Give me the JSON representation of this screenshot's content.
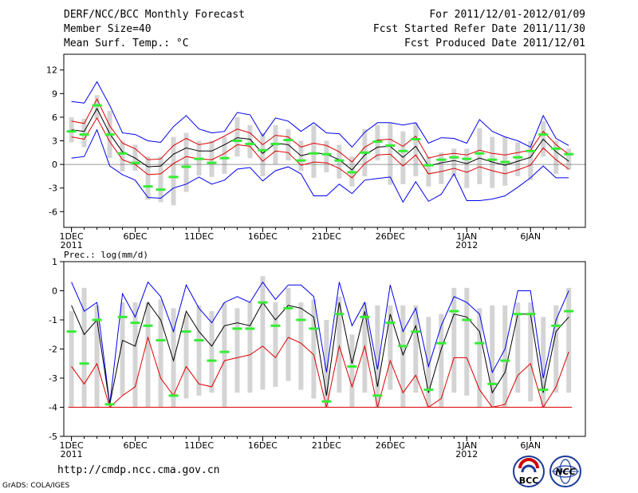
{
  "header": {
    "left": [
      "DERF/NCC/BCC Monthly Forecast",
      "Member Size=40",
      "Mean Surf. Temp.: °C"
    ],
    "right": [
      "For 2011/12/01-2012/01/09",
      "Fcst Started Refer Date 2011/11/30",
      "Fcst Produced Date 2011/12/01"
    ]
  },
  "footer": {
    "url": "http://cmdp.ncc.cma.gov.cn",
    "grads": "GrADS: COLA/IGES"
  },
  "logos": {
    "bcc": "BCC",
    "ncc": "NCC"
  },
  "colors": {
    "bar": "#d4d4d4",
    "green": "#33ee33",
    "red": "#dd0000",
    "blue": "#0000ee",
    "black": "#000000",
    "zero": "#777777"
  },
  "x_ticks": {
    "labels": [
      "1DEC",
      "6DEC",
      "11DEC",
      "16DEC",
      "21DEC",
      "26DEC",
      "1JAN",
      "6JAN"
    ],
    "days": [
      1,
      6,
      11,
      16,
      21,
      26,
      32,
      37
    ],
    "year_labels": [
      {
        "day": 1,
        "text": "2011"
      },
      {
        "day": 32,
        "text": "2012"
      }
    ]
  },
  "chart_data": [
    {
      "type": "line",
      "title": "Mean Surf. Temp.: °C",
      "x": [
        1,
        2,
        3,
        4,
        5,
        6,
        7,
        8,
        9,
        10,
        11,
        12,
        13,
        14,
        15,
        16,
        17,
        18,
        19,
        20,
        21,
        22,
        23,
        24,
        25,
        26,
        27,
        28,
        29,
        30,
        31,
        32,
        33,
        34,
        35,
        36,
        37,
        38,
        39,
        40
      ],
      "ylim": [
        -8,
        14
      ],
      "yticks": [
        -6,
        -3,
        0,
        3,
        6,
        9,
        12
      ],
      "series": [
        {
          "name": "max",
          "color": "blue",
          "values": [
            8,
            7.8,
            10.5,
            7.5,
            4,
            3.8,
            3,
            2.8,
            4.8,
            6.2,
            4.5,
            4,
            4.2,
            6.6,
            6.3,
            3.6,
            5.9,
            5.5,
            4.2,
            5.3,
            4,
            3.9,
            2.2,
            4.1,
            5.3,
            5.3,
            5,
            5.3,
            2.7,
            3.4,
            3.3,
            2.7,
            5.7,
            4.2,
            3.5,
            3,
            2.2,
            6.2,
            3.3,
            2.4
          ]
        },
        {
          "name": "upper",
          "color": "red",
          "values": [
            5.5,
            5.2,
            8.3,
            4.9,
            2.7,
            2,
            0.6,
            0.7,
            2.4,
            3.3,
            2.5,
            2.8,
            3.6,
            4.5,
            4,
            2.5,
            3.7,
            3.5,
            2.2,
            2.7,
            2.4,
            1.6,
            0.3,
            2.2,
            3.1,
            3.2,
            2.3,
            3.6,
            0.8,
            1.2,
            1.4,
            1.2,
            1.8,
            1.4,
            1.2,
            1.5,
            1.8,
            4.2,
            2.5,
            1.3
          ]
        },
        {
          "name": "mean",
          "color": "black",
          "values": [
            4.4,
            4.2,
            7.1,
            3.9,
            1.6,
            0.8,
            -0.3,
            -0.2,
            1.3,
            2.1,
            1.7,
            1.7,
            2.5,
            3.4,
            3.2,
            1.4,
            2.7,
            2.5,
            1.1,
            1.5,
            1.3,
            0.6,
            -0.7,
            1.2,
            2.2,
            2.3,
            0.9,
            2.3,
            -0.2,
            0.2,
            0.5,
            0.1,
            0.8,
            0.3,
            -0.1,
            0.4,
            0.9,
            3.2,
            1.6,
            0.4
          ]
        },
        {
          "name": "lower",
          "color": "red",
          "values": [
            3.5,
            3.2,
            5.9,
            2.9,
            0.6,
            0,
            -1.3,
            -1.2,
            0.1,
            1,
            0.7,
            0.6,
            1.4,
            2.5,
            2.3,
            0.4,
            1.7,
            1.5,
            -0.1,
            0.3,
            0.2,
            -0.5,
            -1.7,
            0.1,
            1.2,
            1.3,
            -0.2,
            1.2,
            -1.2,
            -0.9,
            -0.5,
            -1,
            -0.3,
            -0.8,
            -1.2,
            -0.7,
            -0.1,
            2.1,
            0.6,
            -0.6
          ]
        },
        {
          "name": "min",
          "color": "blue",
          "values": [
            0.8,
            1,
            4.4,
            -0.2,
            -1.3,
            -2,
            -4.2,
            -4.3,
            -3,
            -2.5,
            -1.6,
            -2.5,
            -2,
            -0.6,
            -0.4,
            -2.1,
            -0.8,
            -0.3,
            -1.2,
            -4,
            -4,
            -2.5,
            -3.7,
            -2,
            -1.8,
            -1.6,
            -4.8,
            -2.2,
            -4.7,
            -3.8,
            -1.2,
            -4.6,
            -4.6,
            -4.4,
            -4,
            -2.9,
            -1.7,
            -0.2,
            -1.7,
            -1.7
          ]
        }
      ],
      "boxes": {
        "top": [
          6,
          5.8,
          8.8,
          6.8,
          3,
          2.5,
          1,
          1,
          3.5,
          4,
          3,
          3,
          3.5,
          6,
          5,
          4,
          5,
          4.5,
          3,
          5,
          3,
          2.5,
          1,
          4.5,
          5,
          5.3,
          4.2,
          5.3,
          1,
          1.5,
          2,
          2,
          4.6,
          3.5,
          3.5,
          2.8,
          3,
          5.5,
          3,
          2
        ],
        "bottom": [
          2.8,
          2.2,
          5.8,
          0.8,
          -0.9,
          -0.8,
          -4.5,
          -4.8,
          -5.2,
          -3.5,
          -1.4,
          -1.6,
          -1.2,
          1,
          0.8,
          -1.5,
          0,
          0.5,
          -0.8,
          -1.7,
          -1,
          -1.8,
          -2.8,
          -1.5,
          0.5,
          -2.6,
          -2.5,
          -1.5,
          -2.8,
          -2.5,
          -1.5,
          -3,
          -2.5,
          -3,
          -2.7,
          -1.5,
          -2,
          1,
          -1.2,
          -0.7
        ]
      },
      "green_marks": [
        4.2,
        3.8,
        7.5,
        3.8,
        1.4,
        0.2,
        -2.8,
        -3.2,
        -1.6,
        -0.3,
        0.7,
        0.2,
        0.8,
        3,
        2.6,
        1.8,
        2.6,
        3.1,
        0.5,
        1.4,
        1.3,
        0.5,
        -1,
        1.5,
        2.9,
        2.4,
        1.7,
        3.2,
        -0.1,
        0.6,
        0.9,
        0.7,
        1.4,
        0.6,
        0.3,
        0.9,
        1.7,
        3.8,
        2,
        1.3
      ]
    },
    {
      "type": "line",
      "title": "Prec.: log(mm/d)",
      "x": [
        1,
        2,
        3,
        4,
        5,
        6,
        7,
        8,
        9,
        10,
        11,
        12,
        13,
        14,
        15,
        16,
        17,
        18,
        19,
        20,
        21,
        22,
        23,
        24,
        25,
        26,
        27,
        28,
        29,
        30,
        31,
        32,
        33,
        34,
        35,
        36,
        37,
        38,
        39,
        40
      ],
      "ylim": [
        -5,
        1
      ],
      "yticks": [
        -5,
        -4,
        -3,
        -2,
        -1,
        0,
        1
      ],
      "series": [
        {
          "name": "max",
          "color": "blue",
          "values": [
            0.3,
            -0.7,
            -0.4,
            -3.9,
            -0.1,
            -0.9,
            0.3,
            -0.2,
            -1.4,
            0.2,
            -0.6,
            -1.1,
            -0.4,
            -0.2,
            -0.4,
            0.3,
            -0.3,
            0.2,
            0.2,
            -0.2,
            -2.8,
            0.3,
            -1.2,
            -0.4,
            -2.7,
            0.2,
            -1.4,
            -0.6,
            -2.6,
            -1.2,
            -0.2,
            -0.4,
            -0.8,
            -2.8,
            -2,
            0,
            0,
            -3,
            -1,
            0
          ]
        },
        {
          "name": "mean",
          "color": "black",
          "values": [
            -0.5,
            -1.5,
            -1,
            -3.9,
            -1.7,
            -1.9,
            -0.4,
            -1,
            -2.4,
            -0.7,
            -1.4,
            -1.9,
            -1.2,
            -1.1,
            -1.2,
            -0.4,
            -1,
            -0.5,
            -0.6,
            -0.9,
            -3.6,
            -0.4,
            -2.5,
            -0.7,
            -3.3,
            -0.8,
            -2.2,
            -1.2,
            -3.5,
            -2,
            -0.8,
            -0.9,
            -1.4,
            -3.5,
            -2.8,
            -0.8,
            -0.8,
            -3.5,
            -1.4,
            -0.9
          ]
        },
        {
          "name": "min",
          "color": "red",
          "values": [
            -2.6,
            -3.2,
            -2.5,
            -4,
            -3.6,
            -3.3,
            -1.6,
            -3,
            -3.6,
            -2.6,
            -3.2,
            -3.3,
            -2.4,
            -2.3,
            -2.2,
            -1.9,
            -2.3,
            -1.6,
            -1.8,
            -2.2,
            -4,
            -1.9,
            -3.3,
            -1.9,
            -4,
            -2.4,
            -3.5,
            -2.9,
            -4,
            -3.7,
            -2.3,
            -2.3,
            -3.4,
            -4,
            -3.9,
            -2.9,
            -2.5,
            -4,
            -3.3,
            -2.1
          ]
        }
      ],
      "boxes": {
        "top": [
          -0.7,
          0.1,
          -0.5,
          -4,
          -0.4,
          -0.4,
          -0.4,
          -0.3,
          -0.6,
          -0.8,
          -0.5,
          -0.7,
          -0.4,
          -0.6,
          -0.4,
          0.5,
          -0.4,
          0.1,
          -0.4,
          -0.3,
          -1,
          -0.2,
          -1.5,
          -0.4,
          -0.5,
          -0.5,
          -0.5,
          -0.5,
          -0.9,
          -0.8,
          0.1,
          0.1,
          -0.6,
          -0.5,
          -0.5,
          -0.4,
          -0.4,
          -0.9,
          -0.5,
          0.1
        ],
        "bottom": [
          -4,
          -4,
          -4,
          -4,
          -3.6,
          -4,
          -4,
          -4,
          -4,
          -3.7,
          -3.6,
          -3.5,
          -4,
          -3.5,
          -3.5,
          -3.4,
          -3.3,
          -3.1,
          -3.4,
          -3.7,
          -4,
          -3.5,
          -4,
          -3.5,
          -4,
          -3.4,
          -4,
          -3.5,
          -4,
          -4,
          -3.5,
          -3.6,
          -4,
          -4,
          -4,
          -3.5,
          -3.8,
          -4,
          -3.5,
          -3.5
        ]
      },
      "green_marks": [
        -1.4,
        -2.5,
        -1,
        -3.9,
        -0.9,
        -1.1,
        -1.2,
        -1.7,
        -3.6,
        -1.4,
        -1.7,
        -2.4,
        -2.1,
        -1.3,
        -1.3,
        -0.4,
        -1.2,
        -0.6,
        -1,
        -1.3,
        -3.8,
        -0.8,
        -2.6,
        -0.9,
        -3.6,
        -1.1,
        -1.9,
        -1.4,
        -3.4,
        -1.8,
        -0.7,
        -1,
        -1.8,
        -3.2,
        -2.4,
        -0.8,
        -0.8,
        -3.4,
        -1.2,
        -0.7
      ]
    }
  ]
}
